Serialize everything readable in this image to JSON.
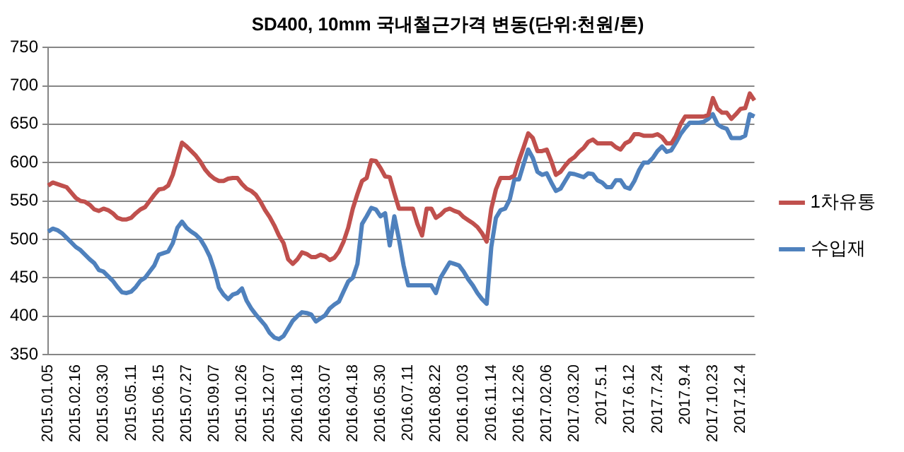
{
  "chart_data": {
    "type": "line",
    "title": "SD400, 10mm 국내철근가격 변동(단위:천원/톤)",
    "categories": [
      "2015.01.05",
      null,
      null,
      null,
      null,
      null,
      "2015.02.16",
      null,
      null,
      null,
      null,
      null,
      "2015.03.30",
      null,
      null,
      null,
      null,
      null,
      "2015.05.11",
      null,
      null,
      null,
      null,
      null,
      "2015.06.15",
      null,
      null,
      null,
      null,
      null,
      "2015.07.27",
      null,
      null,
      null,
      null,
      null,
      "2015.09.07",
      null,
      null,
      null,
      null,
      null,
      "2015.10.26",
      null,
      null,
      null,
      null,
      null,
      "2015.12.07",
      null,
      null,
      null,
      null,
      null,
      "2016.01.18",
      null,
      null,
      null,
      null,
      null,
      "2016.03.07",
      null,
      null,
      null,
      null,
      null,
      "2016.04.18",
      null,
      null,
      null,
      null,
      null,
      "2016.05.30",
      null,
      null,
      null,
      null,
      null,
      "2016.07.11",
      null,
      null,
      null,
      null,
      null,
      "2016.08.22",
      null,
      null,
      null,
      null,
      null,
      "2016.10.03",
      null,
      null,
      null,
      null,
      null,
      "2016.11.14",
      null,
      null,
      null,
      null,
      null,
      "2016.12.26",
      null,
      null,
      null,
      null,
      null,
      "2017.02.06",
      null,
      null,
      null,
      null,
      null,
      "2017.03.20",
      null,
      null,
      null,
      null,
      null,
      "2017.5.1",
      null,
      null,
      null,
      null,
      null,
      "2017.6.12",
      null,
      null,
      null,
      null,
      null,
      "2017.7.24",
      null,
      null,
      null,
      null,
      null,
      "2017.9.4",
      null,
      null,
      null,
      null,
      null,
      "2017.10.23",
      null,
      null,
      null,
      null,
      null,
      "2017.12.4",
      null,
      null,
      null
    ],
    "series": [
      {
        "name": "1차유통",
        "color": "#c0504d",
        "values": [
          570,
          574,
          572,
          570,
          568,
          561,
          554,
          550,
          549,
          545,
          539,
          537,
          540,
          538,
          534,
          528,
          526,
          526,
          528,
          534,
          539,
          542,
          550,
          558,
          565,
          566,
          570,
          584,
          605,
          626,
          621,
          615,
          609,
          601,
          591,
          584,
          579,
          576,
          576,
          579,
          580,
          580,
          572,
          566,
          563,
          558,
          549,
          538,
          529,
          518,
          505,
          495,
          474,
          468,
          474,
          483,
          481,
          477,
          477,
          480,
          478,
          473,
          476,
          484,
          497,
          515,
          540,
          559,
          576,
          580,
          603,
          602,
          593,
          582,
          581,
          560,
          540,
          540,
          540,
          540,
          520,
          505,
          540,
          540,
          528,
          532,
          538,
          540,
          537,
          535,
          529,
          525,
          521,
          516,
          508,
          497,
          540,
          565,
          580,
          580,
          580,
          583,
          603,
          620,
          638,
          632,
          615,
          615,
          617,
          602,
          584,
          588,
          596,
          603,
          607,
          614,
          619,
          627,
          630,
          625,
          625,
          625,
          625,
          620,
          617,
          625,
          628,
          637,
          637,
          635,
          635,
          635,
          637,
          633,
          625,
          625,
          635,
          650,
          660,
          660,
          660,
          660,
          660,
          662,
          684,
          670,
          665,
          665,
          657,
          663,
          670,
          671,
          690,
          681
        ]
      },
      {
        "name": "수입재",
        "color": "#4f81bd",
        "values": [
          510,
          514,
          512,
          508,
          502,
          496,
          490,
          486,
          480,
          474,
          469,
          460,
          458,
          452,
          446,
          438,
          431,
          430,
          432,
          438,
          446,
          450,
          458,
          466,
          480,
          482,
          484,
          495,
          515,
          523,
          515,
          510,
          506,
          500,
          490,
          478,
          460,
          437,
          428,
          422,
          428,
          430,
          436,
          420,
          410,
          402,
          395,
          388,
          378,
          372,
          370,
          374,
          384,
          394,
          400,
          405,
          404,
          402,
          393,
          397,
          401,
          410,
          415,
          419,
          432,
          445,
          450,
          468,
          520,
          530,
          541,
          539,
          530,
          534,
          492,
          530,
          500,
          466,
          440,
          440,
          440,
          440,
          440,
          440,
          430,
          450,
          460,
          470,
          468,
          466,
          458,
          448,
          440,
          430,
          422,
          416,
          490,
          528,
          538,
          540,
          552,
          578,
          578,
          598,
          617,
          606,
          588,
          584,
          586,
          574,
          563,
          566,
          576,
          586,
          585,
          583,
          581,
          586,
          585,
          577,
          574,
          568,
          568,
          577,
          577,
          568,
          566,
          576,
          590,
          600,
          600,
          606,
          615,
          621,
          614,
          616,
          626,
          637,
          645,
          652,
          652,
          652,
          653,
          657,
          663,
          650,
          646,
          644,
          632,
          632,
          632,
          635,
          663,
          660
        ]
      }
    ],
    "ylim": [
      350,
      750
    ],
    "yticks": [
      350,
      400,
      450,
      500,
      550,
      600,
      650,
      700,
      750
    ],
    "grid": "y",
    "legend": "right",
    "marker": "none",
    "line_style": "solid"
  }
}
